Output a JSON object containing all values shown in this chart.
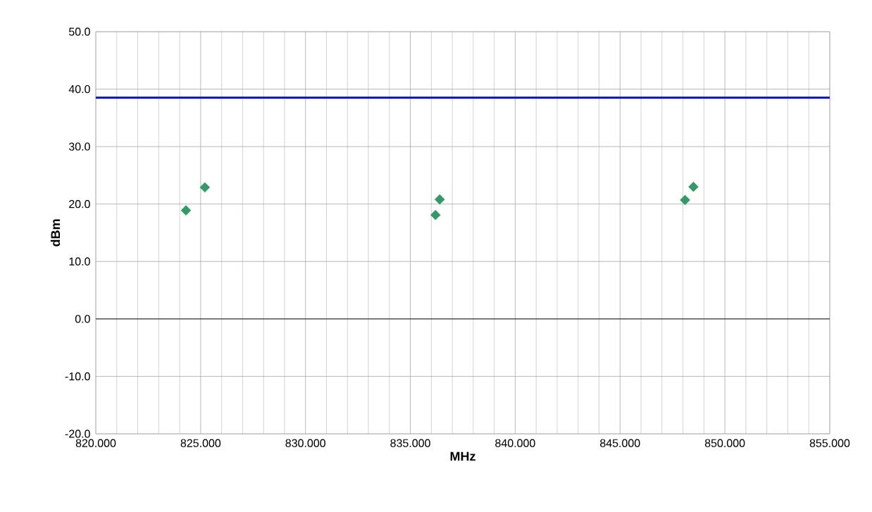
{
  "chart_data": {
    "type": "scatter",
    "xlabel": "MHz",
    "ylabel": "dBm",
    "series": [
      {
        "color": "#339966",
        "x": [
          824.3,
          825.2,
          836.2,
          836.4,
          848.1,
          848.5
        ],
        "values": [
          18.9,
          22.9,
          18.1,
          20.8,
          20.7,
          23.0
        ]
      }
    ],
    "xlim": [
      820,
      855
    ],
    "ylim": [
      -20,
      50
    ],
    "xticks": [
      {
        "value": 820,
        "label": "820.000"
      },
      {
        "value": 825,
        "label": "825.000"
      },
      {
        "value": 830,
        "label": "830.000"
      },
      {
        "value": 835,
        "label": "835.000"
      },
      {
        "value": 840,
        "label": "840.000"
      },
      {
        "value": 845,
        "label": "845.000"
      },
      {
        "value": 850,
        "label": "850.000"
      },
      {
        "value": 855,
        "label": "855.000"
      }
    ],
    "yticks": [
      {
        "value": -20,
        "label": "-20.0"
      },
      {
        "value": -10,
        "label": "-10.0"
      },
      {
        "value": 0,
        "label": "0.0"
      },
      {
        "value": 10,
        "label": "10.0"
      },
      {
        "value": 20,
        "label": "20.0"
      },
      {
        "value": 30,
        "label": "30.0"
      },
      {
        "value": 40,
        "label": "40.0"
      },
      {
        "value": 50,
        "label": "50.0"
      }
    ],
    "ref_lines": [
      {
        "axis": "y",
        "value": 38.5,
        "color": "#0000ff"
      }
    ],
    "grid": true,
    "marker": "diamond"
  }
}
